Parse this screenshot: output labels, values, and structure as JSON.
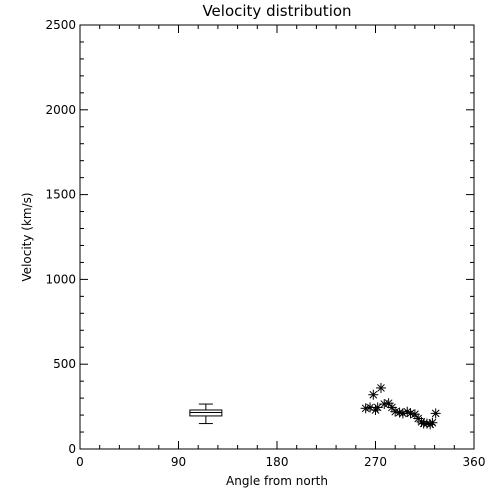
{
  "chart_data": {
    "type": "scatter",
    "title": "Velocity distribution",
    "xlabel": "Angle from north",
    "ylabel": "Velocity (km/s)",
    "xlim": [
      0,
      360
    ],
    "ylim": [
      0,
      2500
    ],
    "xticks": [
      0,
      90,
      180,
      270,
      360
    ],
    "yticks": [
      0,
      500,
      1000,
      1500,
      2000,
      2500
    ],
    "grid": false,
    "series": [
      {
        "marker": "asterisk",
        "points": [
          {
            "x": 261,
            "y": 240
          },
          {
            "x": 265,
            "y": 245
          },
          {
            "x": 268,
            "y": 320
          },
          {
            "x": 270,
            "y": 230
          },
          {
            "x": 272,
            "y": 245
          },
          {
            "x": 275,
            "y": 360
          },
          {
            "x": 278,
            "y": 265
          },
          {
            "x": 282,
            "y": 270
          },
          {
            "x": 285,
            "y": 245
          },
          {
            "x": 288,
            "y": 220
          },
          {
            "x": 292,
            "y": 215
          },
          {
            "x": 295,
            "y": 210
          },
          {
            "x": 299,
            "y": 220
          },
          {
            "x": 302,
            "y": 210
          },
          {
            "x": 306,
            "y": 205
          },
          {
            "x": 309,
            "y": 180
          },
          {
            "x": 312,
            "y": 160
          },
          {
            "x": 314,
            "y": 150
          },
          {
            "x": 317,
            "y": 150
          },
          {
            "x": 320,
            "y": 145
          },
          {
            "x": 322,
            "y": 155
          },
          {
            "x": 325,
            "y": 210
          }
        ]
      }
    ],
    "boxplot": {
      "x": 115,
      "min": 150,
      "q1": 195,
      "median": 215,
      "q3": 230,
      "max": 265
    }
  }
}
